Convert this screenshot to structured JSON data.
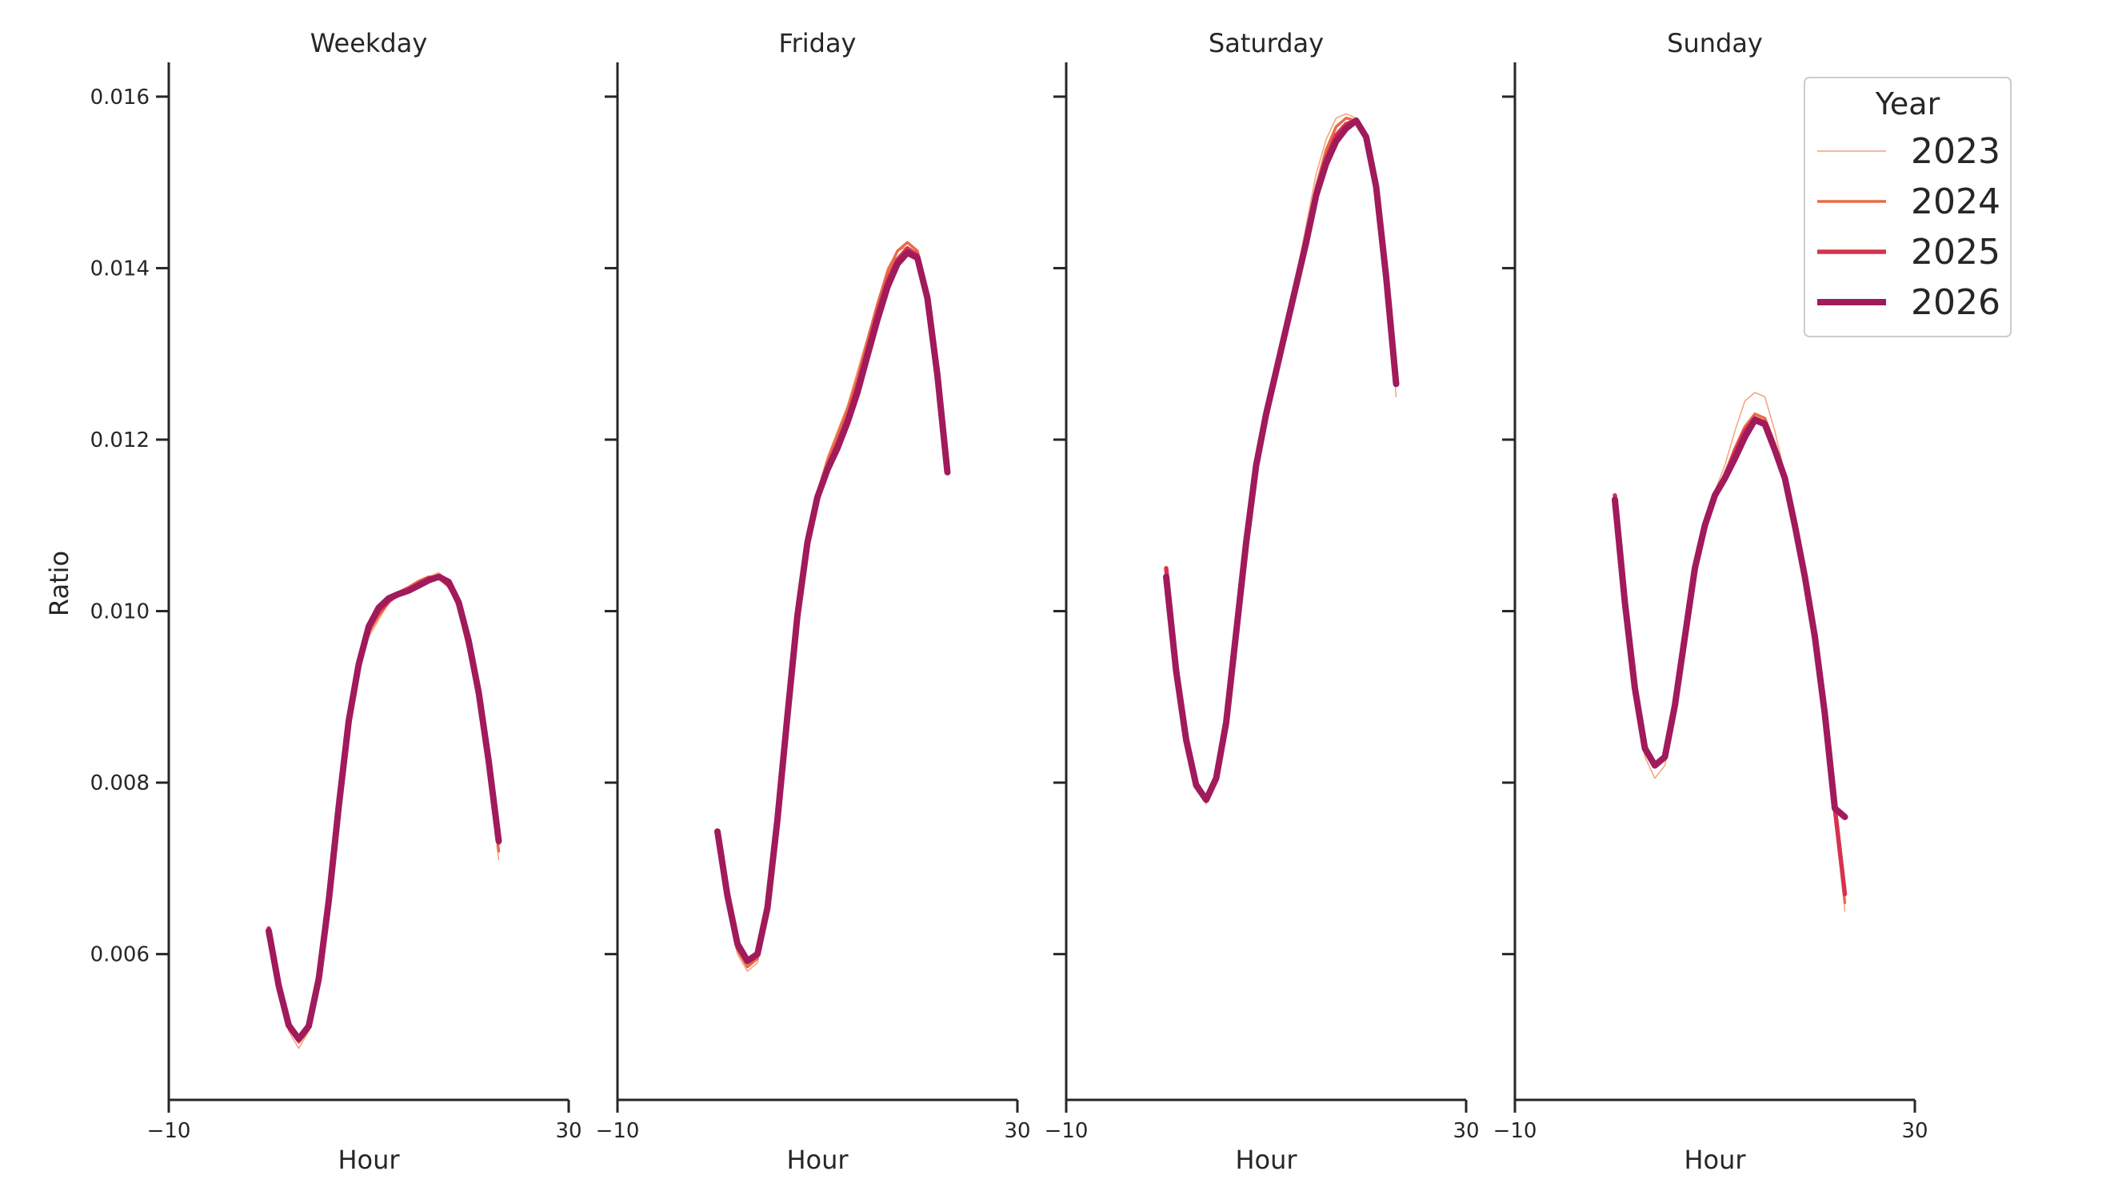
{
  "chart_data": {
    "type": "line",
    "ylabel": "Ratio",
    "xlim": [
      -10,
      30
    ],
    "ylim": [
      0.0043,
      0.0164
    ],
    "xticks": [
      -10,
      30
    ],
    "xtick_labels": [
      "−10",
      "30"
    ],
    "yticks": [
      0.006,
      0.008,
      0.01,
      0.012,
      0.014,
      0.016
    ],
    "ytick_labels": [
      "0.006",
      "0.008",
      "0.010",
      "0.012",
      "0.014",
      "0.016"
    ],
    "legend": {
      "title": "Year",
      "position": "top-right",
      "entries": [
        {
          "label": "2023",
          "color": "#f3a27a",
          "width": 1.5
        },
        {
          "label": "2024",
          "color": "#eb6a47",
          "width": 3.5
        },
        {
          "label": "2025",
          "color": "#d6324e",
          "width": 5.5
        },
        {
          "label": "2026",
          "color": "#a11a5b",
          "width": 8
        }
      ]
    },
    "panels": [
      {
        "title": "Weekday",
        "xlabel": "Hour",
        "x": [
          0,
          1,
          2,
          3,
          4,
          5,
          6,
          7,
          8,
          9,
          10,
          11,
          12,
          13,
          14,
          15,
          16,
          17,
          18,
          19,
          20,
          21,
          22,
          23
        ],
        "series": [
          {
            "name": "2023",
            "values": [
              0.00625,
              0.0056,
              0.0051,
              0.0049,
              0.0051,
              0.0057,
              0.0066,
              0.0077,
              0.0087,
              0.0093,
              0.0097,
              0.0099,
              0.0101,
              0.0102,
              0.01025,
              0.01035,
              0.0104,
              0.01045,
              0.01035,
              0.01,
              0.0095,
              0.0089,
              0.0081,
              0.0071
            ]
          },
          {
            "name": "2024",
            "values": [
              0.0063,
              0.00562,
              0.00515,
              0.00497,
              0.00512,
              0.0057,
              0.0066,
              0.0077,
              0.0087,
              0.0093,
              0.00975,
              0.00995,
              0.0101,
              0.01022,
              0.01028,
              0.01035,
              0.0104,
              0.0104,
              0.0103,
              0.01005,
              0.00955,
              0.009,
              0.0082,
              0.0072
            ]
          },
          {
            "name": "2025",
            "values": [
              0.0063,
              0.00563,
              0.00517,
              0.005,
              0.00515,
              0.0057,
              0.0066,
              0.0077,
              0.0087,
              0.00935,
              0.0098,
              0.01,
              0.01012,
              0.0102,
              0.01025,
              0.01032,
              0.01038,
              0.0104,
              0.0103,
              0.0101,
              0.0096,
              0.00905,
              0.0082,
              0.0073
            ]
          },
          {
            "name": "2026",
            "values": [
              0.00627,
              0.00563,
              0.00517,
              0.00501,
              0.00516,
              0.00571,
              0.00662,
              0.00772,
              0.00872,
              0.00938,
              0.00982,
              0.01004,
              0.01015,
              0.0102,
              0.01024,
              0.0103,
              0.01036,
              0.0104,
              0.01034,
              0.0101,
              0.00965,
              0.00905,
              0.00825,
              0.00732
            ]
          }
        ]
      },
      {
        "title": "Friday",
        "xlabel": "Hour",
        "x": [
          0,
          1,
          2,
          3,
          4,
          5,
          6,
          7,
          8,
          9,
          10,
          11,
          12,
          13,
          14,
          15,
          16,
          17,
          18,
          19,
          20,
          21,
          22,
          23
        ],
        "series": [
          {
            "name": "2023",
            "values": [
              0.0074,
              0.0066,
              0.006,
              0.0058,
              0.0059,
              0.0065,
              0.0076,
              0.0089,
              0.0101,
              0.0109,
              0.0114,
              0.0118,
              0.0121,
              0.0124,
              0.0128,
              0.0132,
              0.0136,
              0.014,
              0.0142,
              0.01425,
              0.0141,
              0.0137,
              0.0128,
              0.0116
            ]
          },
          {
            "name": "2024",
            "values": [
              0.00742,
              0.00665,
              0.00605,
              0.00585,
              0.00595,
              0.00652,
              0.0076,
              0.0089,
              0.0101,
              0.0109,
              0.01138,
              0.01175,
              0.01205,
              0.01235,
              0.01272,
              0.01315,
              0.01358,
              0.01395,
              0.0142,
              0.0143,
              0.0142,
              0.0137,
              0.0128,
              0.0117
            ]
          },
          {
            "name": "2025",
            "values": [
              0.00743,
              0.00667,
              0.00608,
              0.00592,
              0.006,
              0.00654,
              0.00758,
              0.0088,
              0.00998,
              0.01083,
              0.01135,
              0.01168,
              0.01195,
              0.01225,
              0.01262,
              0.01305,
              0.01348,
              0.01385,
              0.0141,
              0.01423,
              0.01415,
              0.01368,
              0.01278,
              0.01165
            ]
          },
          {
            "name": "2026",
            "values": [
              0.00743,
              0.00668,
              0.00612,
              0.00592,
              0.006,
              0.00654,
              0.00757,
              0.00878,
              0.00995,
              0.0108,
              0.01133,
              0.01165,
              0.0119,
              0.0122,
              0.01255,
              0.01298,
              0.0134,
              0.01378,
              0.01405,
              0.01418,
              0.01412,
              0.01365,
              0.01275,
              0.01162
            ]
          }
        ]
      },
      {
        "title": "Saturday",
        "xlabel": "Hour",
        "x": [
          0,
          1,
          2,
          3,
          4,
          5,
          6,
          7,
          8,
          9,
          10,
          11,
          12,
          13,
          14,
          15,
          16,
          17,
          18,
          19,
          20,
          21,
          22,
          23
        ],
        "series": [
          {
            "name": "2023",
            "values": [
              0.0104,
              0.0093,
              0.0085,
              0.008,
              0.00775,
              0.0081,
              0.0087,
              0.0097,
              0.0108,
              0.0117,
              0.0123,
              0.0128,
              0.0133,
              0.0139,
              0.0145,
              0.0151,
              0.0155,
              0.01575,
              0.0158,
              0.01575,
              0.0155,
              0.0149,
              0.0139,
              0.0125
            ]
          },
          {
            "name": "2024",
            "values": [
              0.01045,
              0.0093,
              0.0085,
              0.008,
              0.0078,
              0.0081,
              0.0087,
              0.0097,
              0.0108,
              0.0117,
              0.0123,
              0.0128,
              0.0133,
              0.0138,
              0.0144,
              0.01495,
              0.01538,
              0.01565,
              0.01575,
              0.01572,
              0.0155,
              0.01495,
              0.0139,
              0.01265
            ]
          },
          {
            "name": "2025",
            "values": [
              0.0105,
              0.0093,
              0.0085,
              0.008,
              0.0078,
              0.00805,
              0.0087,
              0.00975,
              0.0108,
              0.0117,
              0.0123,
              0.0128,
              0.0133,
              0.0138,
              0.0143,
              0.0149,
              0.01528,
              0.01555,
              0.01568,
              0.01572,
              0.01552,
              0.01495,
              0.0139,
              0.0127
            ]
          },
          {
            "name": "2026",
            "values": [
              0.0104,
              0.0093,
              0.0085,
              0.00797,
              0.0078,
              0.00805,
              0.0087,
              0.00975,
              0.0108,
              0.0117,
              0.0123,
              0.0128,
              0.0133,
              0.0138,
              0.0143,
              0.01485,
              0.01522,
              0.01548,
              0.01563,
              0.01572,
              0.01553,
              0.01495,
              0.0139,
              0.01265
            ]
          }
        ]
      },
      {
        "title": "Sunday",
        "xlabel": "Hour",
        "x": [
          0,
          1,
          2,
          3,
          4,
          5,
          6,
          7,
          8,
          9,
          10,
          11,
          12,
          13,
          14,
          15,
          16,
          17,
          18,
          19,
          20,
          21,
          22,
          23
        ],
        "series": [
          {
            "name": "2023",
            "values": [
              0.0113,
              0.0101,
              0.0091,
              0.0083,
              0.00805,
              0.0082,
              0.0089,
              0.0097,
              0.0105,
              0.011,
              0.0114,
              0.0117,
              0.0121,
              0.01245,
              0.01255,
              0.0125,
              0.0121,
              0.0116,
              0.011,
              0.0104,
              0.0097,
              0.0088,
              0.0077,
              0.0065
            ]
          },
          {
            "name": "2024",
            "values": [
              0.01135,
              0.0101,
              0.0091,
              0.0084,
              0.0082,
              0.00828,
              0.0089,
              0.0097,
              0.0105,
              0.011,
              0.01135,
              0.0116,
              0.0119,
              0.01215,
              0.0123,
              0.01225,
              0.01195,
              0.0116,
              0.011,
              0.0104,
              0.0097,
              0.0088,
              0.0077,
              0.0066
            ]
          },
          {
            "name": "2025",
            "values": [
              0.01135,
              0.0101,
              0.0091,
              0.0084,
              0.0082,
              0.0083,
              0.0089,
              0.0097,
              0.0105,
              0.011,
              0.01135,
              0.01158,
              0.01185,
              0.0121,
              0.01225,
              0.0122,
              0.0119,
              0.01158,
              0.011,
              0.0104,
              0.0097,
              0.0088,
              0.0077,
              0.0067
            ]
          },
          {
            "name": "2026",
            "values": [
              0.0113,
              0.0101,
              0.0091,
              0.0084,
              0.0082,
              0.0083,
              0.0089,
              0.0097,
              0.0105,
              0.011,
              0.01135,
              0.01155,
              0.01178,
              0.01203,
              0.01223,
              0.01218,
              0.01188,
              0.01155,
              0.011,
              0.0104,
              0.0097,
              0.0088,
              0.0077,
              0.0076
            ]
          }
        ]
      }
    ]
  }
}
